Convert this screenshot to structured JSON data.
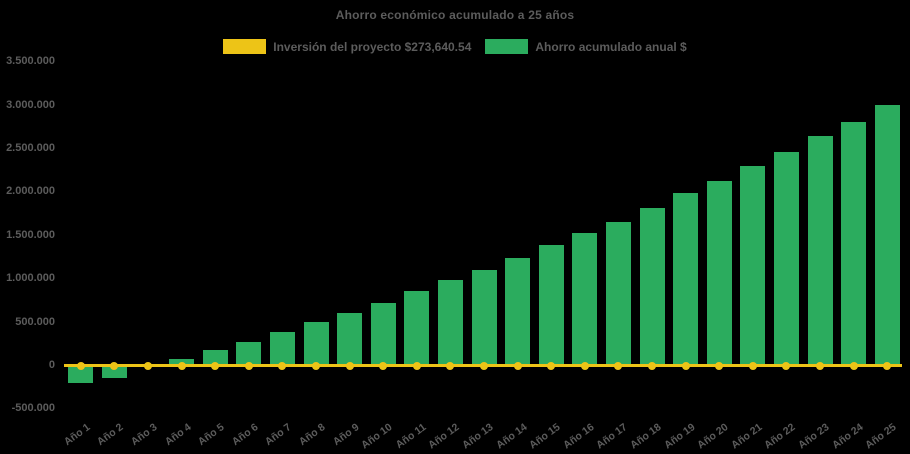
{
  "chart": {
    "title": "Ahorro económico acumulado a 25 años",
    "legend": [
      {
        "label": "Inversión del proyecto $273,640.54",
        "series": "inversion"
      },
      {
        "label": "Ahorro acumulado anual $",
        "series": "ahorro"
      }
    ]
  },
  "colors": {
    "background": "#000000",
    "text": "#5c5c5c",
    "bar_green": "#2BAC5E",
    "line_yellow": "#EDC417"
  },
  "chart_data": {
    "type": "bar",
    "title": "Ahorro económico acumulado a 25 años",
    "categories": [
      "Año 1",
      "Año 2",
      "Año 3",
      "Año 4",
      "Año 5",
      "Año 6",
      "Año 7",
      "Año 8",
      "Año 9",
      "Año 10",
      "Año 11",
      "Año 12",
      "Año 13",
      "Año 14",
      "Año 15",
      "Año 16",
      "Año 17",
      "Año 18",
      "Año 19",
      "Año 20",
      "Año 21",
      "Año 22",
      "Año 23",
      "Año 24",
      "Año 25"
    ],
    "series": [
      {
        "name": "Ahorro acumulado anual $",
        "type": "bar",
        "color": "#2BAC5E",
        "values": [
          -210000,
          -150000,
          0,
          70000,
          175000,
          265000,
          385000,
          500000,
          600000,
          720000,
          850000,
          980000,
          1100000,
          1230000,
          1380000,
          1520000,
          1650000,
          1810000,
          1980000,
          2120000,
          2290000,
          2450000,
          2640000,
          2800000,
          3000000
        ]
      },
      {
        "name": "Inversión del proyecto $273,640.54",
        "type": "line",
        "color": "#EDC417",
        "values": [
          0,
          0,
          0,
          0,
          0,
          0,
          0,
          0,
          0,
          0,
          0,
          0,
          0,
          0,
          0,
          0,
          0,
          0,
          0,
          0,
          0,
          0,
          0,
          0,
          0
        ]
      }
    ],
    "ylim": [
      -500000,
      3500000
    ],
    "ytick_step": 500000,
    "yticks": [
      {
        "label": "3.500.000",
        "value": 3500000
      },
      {
        "label": "3.000.000",
        "value": 3000000
      },
      {
        "label": "2.500.000",
        "value": 2500000
      },
      {
        "label": "2.000.000",
        "value": 2000000
      },
      {
        "label": "1.500.000",
        "value": 1500000
      },
      {
        "label": "1.000.000",
        "value": 1000000
      },
      {
        "label": "500.000",
        "value": 500000
      },
      {
        "label": "0",
        "value": 0
      },
      {
        "label": "-500.000",
        "value": -500000
      }
    ],
    "grid": false,
    "legend_position": "top-center",
    "x_label_rotation_deg": -36
  }
}
